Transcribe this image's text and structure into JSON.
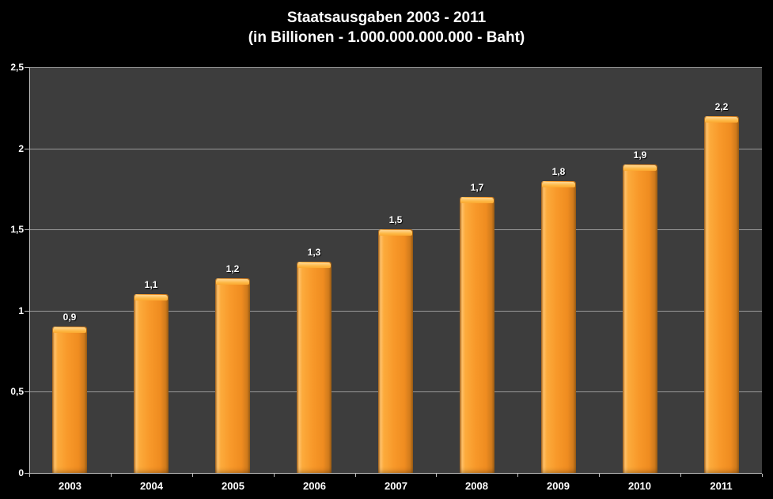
{
  "chart_data": {
    "type": "bar",
    "title": "Staatsausgaben 2003 - 2011",
    "subtitle": "(in Billionen - 1.000.000.000.000  - Baht)",
    "categories": [
      "2003",
      "2004",
      "2005",
      "2006",
      "2007",
      "2008",
      "2009",
      "2010",
      "2011"
    ],
    "values": [
      0.9,
      1.1,
      1.2,
      1.3,
      1.5,
      1.7,
      1.8,
      1.9,
      2.2
    ],
    "value_labels": [
      "0,9",
      "1,1",
      "1,2",
      "1,3",
      "1,5",
      "1,7",
      "1,8",
      "1,9",
      "2,2"
    ],
    "xlabel": "",
    "ylabel": "",
    "ylim": [
      0,
      2.5
    ],
    "yticks": [
      {
        "value": 0,
        "label": "0"
      },
      {
        "value": 0.5,
        "label": "0,5"
      },
      {
        "value": 1,
        "label": "1"
      },
      {
        "value": 1.5,
        "label": "1,5"
      },
      {
        "value": 2,
        "label": "2"
      },
      {
        "value": 2.5,
        "label": "2,5"
      }
    ],
    "grid": true,
    "legend_position": "none",
    "colors": {
      "background": "#000000",
      "plot_background": "#3d3d3d",
      "bar": "#f8992a",
      "bar_highlight": "#ffc169",
      "bar_shadow": "#9a5d15",
      "gridline": "#9a9a9a",
      "axis": "#c0c0c0",
      "text": "#ffffff"
    }
  }
}
